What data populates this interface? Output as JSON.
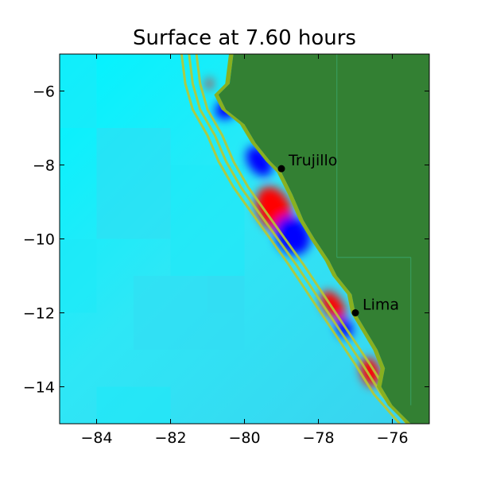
{
  "title": "Surface at 7.60 hours",
  "colors": {
    "land": "#338033",
    "ocean_shallow": "#00f0ff",
    "ocean_mid": "#2de6f5",
    "ocean_deep": "#30d4f0",
    "wave_positive": "#ff0000",
    "wave_negative": "#0000ff",
    "contour": "#b8c832",
    "coast_fringe": "#88b020"
  },
  "chart_data": {
    "type": "heatmap",
    "title": "Surface at 7.60 hours",
    "xlim": [
      -85,
      -75
    ],
    "ylim": [
      -15,
      -5
    ],
    "x_ticks": [
      {
        "value": -84,
        "label": "−84"
      },
      {
        "value": -82,
        "label": "−82"
      },
      {
        "value": -80,
        "label": "−80"
      },
      {
        "value": -78,
        "label": "−78"
      },
      {
        "value": -76,
        "label": "−76"
      }
    ],
    "y_ticks": [
      {
        "value": -6,
        "label": "−6"
      },
      {
        "value": -8,
        "label": "−8"
      },
      {
        "value": -10,
        "label": "−10"
      },
      {
        "value": -12,
        "label": "−12"
      },
      {
        "value": -14,
        "label": "−14"
      }
    ],
    "places": [
      {
        "name": "Trujillo",
        "lon": -79.0,
        "lat": -8.1
      },
      {
        "name": "Lima",
        "lon": -77.0,
        "lat": -12.0
      }
    ],
    "coastline": [
      [
        -80.3,
        -5.0
      ],
      [
        -80.4,
        -5.8
      ],
      [
        -80.7,
        -6.1
      ],
      [
        -80.5,
        -6.5
      ],
      [
        -80.0,
        -6.9
      ],
      [
        -79.7,
        -7.4
      ],
      [
        -79.3,
        -7.9
      ],
      [
        -79.0,
        -8.2
      ],
      [
        -78.7,
        -8.8
      ],
      [
        -78.4,
        -9.5
      ],
      [
        -78.1,
        -10.0
      ],
      [
        -77.7,
        -10.6
      ],
      [
        -77.5,
        -11.0
      ],
      [
        -77.1,
        -11.5
      ],
      [
        -77.0,
        -12.0
      ],
      [
        -76.7,
        -12.5
      ],
      [
        -76.4,
        -13.0
      ],
      [
        -76.2,
        -13.5
      ],
      [
        -76.3,
        -14.0
      ],
      [
        -76.0,
        -14.5
      ],
      [
        -75.5,
        -15.0
      ]
    ],
    "contours": [
      [
        [
          -81.7,
          -5.0
        ],
        [
          -81.6,
          -5.8
        ],
        [
          -81.4,
          -6.5
        ],
        [
          -81.0,
          -7.2
        ],
        [
          -80.7,
          -7.9
        ],
        [
          -80.3,
          -8.6
        ],
        [
          -79.8,
          -9.3
        ],
        [
          -79.3,
          -10.0
        ],
        [
          -78.8,
          -10.7
        ],
        [
          -78.2,
          -11.6
        ],
        [
          -77.6,
          -12.5
        ],
        [
          -77.0,
          -13.4
        ],
        [
          -76.5,
          -14.2
        ],
        [
          -75.8,
          -15.0
        ]
      ],
      [
        [
          -81.5,
          -5.0
        ],
        [
          -81.4,
          -5.8
        ],
        [
          -81.2,
          -6.5
        ],
        [
          -80.8,
          -7.2
        ],
        [
          -80.5,
          -7.9
        ],
        [
          -80.1,
          -8.6
        ],
        [
          -79.6,
          -9.3
        ],
        [
          -79.1,
          -10.0
        ],
        [
          -78.6,
          -10.7
        ],
        [
          -78.0,
          -11.6
        ],
        [
          -77.4,
          -12.5
        ],
        [
          -76.8,
          -13.4
        ],
        [
          -76.3,
          -14.2
        ],
        [
          -75.6,
          -15.0
        ]
      ],
      [
        [
          -81.3,
          -5.0
        ],
        [
          -81.2,
          -5.8
        ],
        [
          -81.0,
          -6.5
        ],
        [
          -80.6,
          -7.2
        ],
        [
          -80.3,
          -7.9
        ],
        [
          -79.9,
          -8.6
        ],
        [
          -79.4,
          -9.3
        ],
        [
          -78.9,
          -10.0
        ],
        [
          -78.4,
          -10.7
        ],
        [
          -77.8,
          -11.6
        ],
        [
          -77.2,
          -12.5
        ],
        [
          -76.6,
          -13.4
        ],
        [
          -76.1,
          -14.2
        ],
        [
          -75.4,
          -15.0
        ]
      ]
    ],
    "anomalies": [
      {
        "sign": "positive",
        "lon": -79.2,
        "lat": -9.2,
        "rx": 0.45,
        "ry": 0.65,
        "rot": -25
      },
      {
        "sign": "negative",
        "lon": -78.7,
        "lat": -9.9,
        "rx": 0.45,
        "ry": 0.55,
        "rot": -30
      },
      {
        "sign": "negative",
        "lon": -79.6,
        "lat": -7.9,
        "rx": 0.3,
        "ry": 0.45,
        "rot": -35
      },
      {
        "sign": "positive",
        "lon": -77.6,
        "lat": -11.8,
        "rx": 0.25,
        "ry": 0.45,
        "rot": -35
      },
      {
        "sign": "negative",
        "lon": -77.3,
        "lat": -12.4,
        "rx": 0.2,
        "ry": 0.3,
        "rot": -30
      },
      {
        "sign": "positive",
        "lon": -76.6,
        "lat": -13.6,
        "rx": 0.25,
        "ry": 0.4,
        "rot": -15
      },
      {
        "sign": "negative",
        "lon": -80.5,
        "lat": -6.5,
        "rx": 0.3,
        "ry": 0.25,
        "rot": -30
      },
      {
        "sign": "positive",
        "lon": -80.95,
        "lat": -5.8,
        "rx": 0.08,
        "ry": 0.15,
        "rot": 0
      }
    ],
    "inland_lines": [
      [
        [
          -77.5,
          -5.0
        ],
        [
          -77.5,
          -10.5
        ]
      ],
      [
        [
          -77.5,
          -10.5
        ],
        [
          -75.5,
          -10.5
        ]
      ],
      [
        [
          -75.5,
          -10.5
        ],
        [
          -75.5,
          -14.5
        ]
      ]
    ]
  }
}
